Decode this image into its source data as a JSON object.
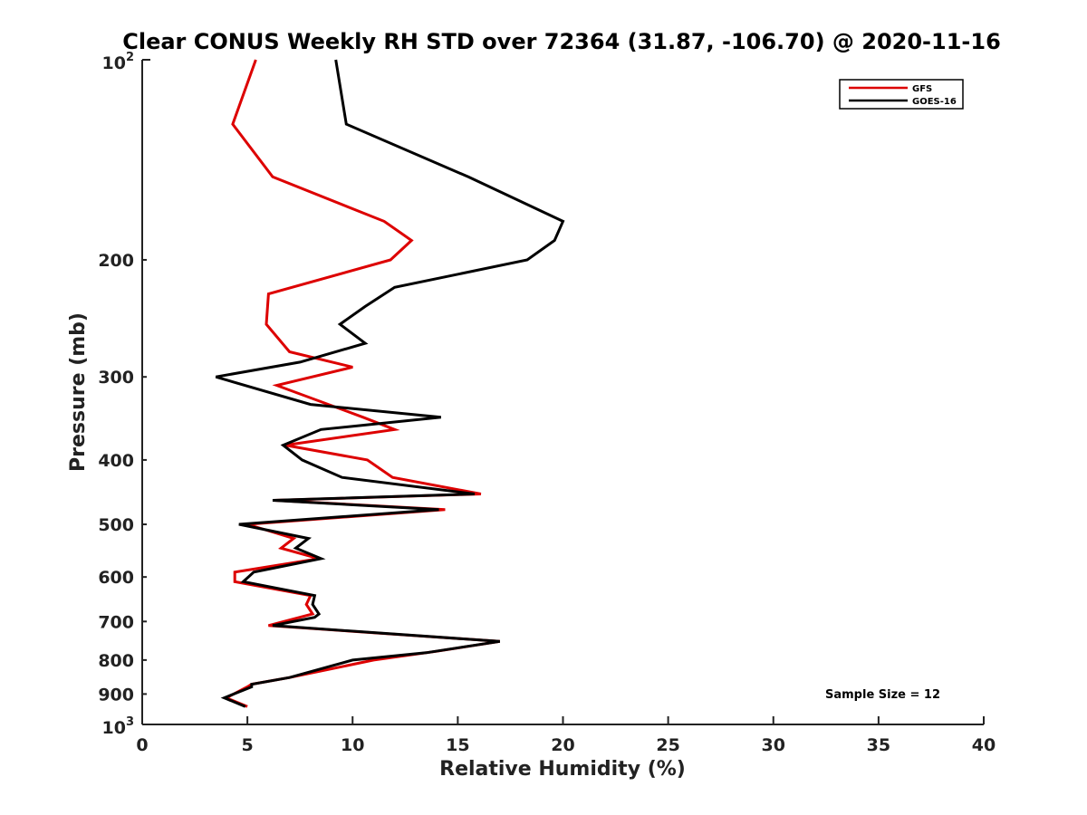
{
  "chart_data": {
    "type": "line",
    "title": "Clear CONUS Weekly RH STD over 72364 (31.87, -106.70) @ 2020-11-16",
    "xlabel": "Relative Humidity (%)",
    "ylabel": "Pressure (mb)",
    "xlim": [
      0,
      40
    ],
    "ylim": [
      100,
      1000
    ],
    "y_scale": "log",
    "y_reversed": true,
    "grid": false,
    "legend_position": "top-right",
    "x_ticks": [
      0,
      5,
      10,
      15,
      20,
      25,
      30,
      35,
      40
    ],
    "y_ticks": [
      {
        "value": 100,
        "base": "10",
        "exp": "2"
      },
      {
        "value": 200,
        "label": "200"
      },
      {
        "value": 300,
        "label": "300"
      },
      {
        "value": 400,
        "label": "400"
      },
      {
        "value": 500,
        "label": "500"
      },
      {
        "value": 600,
        "label": "600"
      },
      {
        "value": 700,
        "label": "700"
      },
      {
        "value": 800,
        "label": "800"
      },
      {
        "value": 900,
        "label": "900"
      },
      {
        "value": 1000,
        "base": "10",
        "exp": "3"
      }
    ],
    "annotation": "Sample Size = 12",
    "series": [
      {
        "name": "GFS",
        "color": "#dd0000",
        "points": [
          [
            5.4,
            100
          ],
          [
            4.3,
            125
          ],
          [
            6.2,
            150
          ],
          [
            11.5,
            175
          ],
          [
            12.8,
            187
          ],
          [
            11.8,
            200
          ],
          [
            6.0,
            225
          ],
          [
            5.9,
            250
          ],
          [
            7.0,
            275
          ],
          [
            10.0,
            290
          ],
          [
            6.4,
            309
          ],
          [
            10.5,
            345
          ],
          [
            12.0,
            360
          ],
          [
            6.8,
            380
          ],
          [
            10.7,
            400
          ],
          [
            11.9,
            425
          ],
          [
            16.1,
            450
          ],
          [
            6.3,
            460
          ],
          [
            14.4,
            475
          ],
          [
            5.0,
            500
          ],
          [
            7.2,
            525
          ],
          [
            6.6,
            543
          ],
          [
            8.4,
            563
          ],
          [
            4.4,
            590
          ],
          [
            4.4,
            610
          ],
          [
            8.0,
            640
          ],
          [
            7.8,
            660
          ],
          [
            8.1,
            682
          ],
          [
            6.0,
            710
          ],
          [
            17.0,
            750
          ],
          [
            14.0,
            776
          ],
          [
            11.0,
            800
          ],
          [
            7.0,
            850
          ],
          [
            5.2,
            870
          ],
          [
            5.0,
            878
          ],
          [
            4.0,
            912
          ],
          [
            5.0,
            940
          ]
        ]
      },
      {
        "name": "GOES-16",
        "color": "#000000",
        "points": [
          [
            9.2,
            100
          ],
          [
            9.7,
            125
          ],
          [
            15.5,
            150
          ],
          [
            20.0,
            175
          ],
          [
            19.6,
            187
          ],
          [
            18.3,
            200
          ],
          [
            12.0,
            220
          ],
          [
            10.6,
            235
          ],
          [
            9.4,
            250
          ],
          [
            10.6,
            267
          ],
          [
            7.5,
            285
          ],
          [
            3.5,
            300
          ],
          [
            8.0,
            330
          ],
          [
            14.2,
            345
          ],
          [
            8.5,
            360
          ],
          [
            6.7,
            380
          ],
          [
            7.6,
            400
          ],
          [
            9.5,
            425
          ],
          [
            15.8,
            450
          ],
          [
            6.2,
            460
          ],
          [
            14.1,
            475
          ],
          [
            4.6,
            500
          ],
          [
            7.9,
            525
          ],
          [
            7.3,
            543
          ],
          [
            8.5,
            563
          ],
          [
            5.3,
            590
          ],
          [
            4.8,
            610
          ],
          [
            8.2,
            640
          ],
          [
            8.1,
            660
          ],
          [
            8.4,
            682
          ],
          [
            8.2,
            690
          ],
          [
            6.2,
            710
          ],
          [
            17.0,
            750
          ],
          [
            13.5,
            780
          ],
          [
            10.0,
            800
          ],
          [
            7.0,
            850
          ],
          [
            5.2,
            870
          ],
          [
            5.2,
            878
          ],
          [
            3.9,
            912
          ],
          [
            4.9,
            940
          ]
        ]
      }
    ]
  }
}
